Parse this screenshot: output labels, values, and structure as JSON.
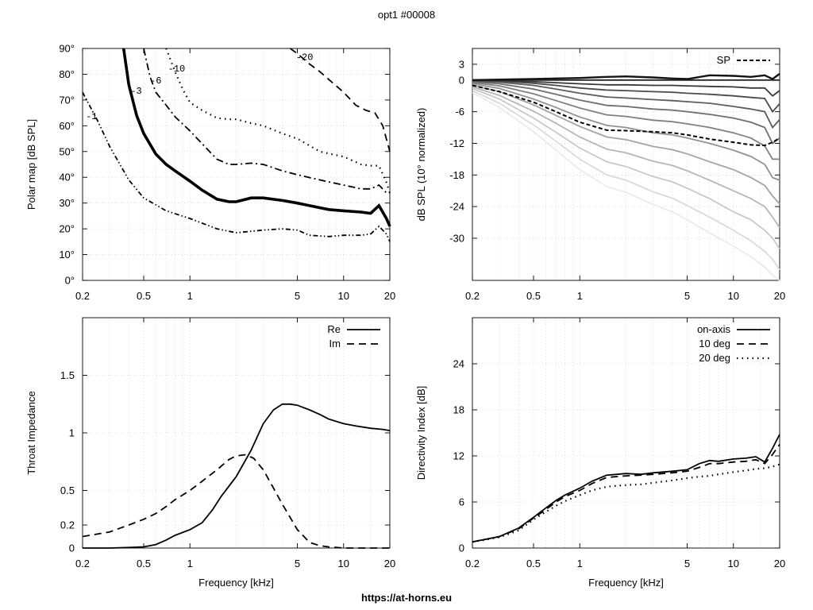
{
  "title": "opt1 #00008",
  "footer": "https://at-horns.eu",
  "chart_data": [
    {
      "id": "polar",
      "type": "line",
      "xscale": "log",
      "xlim": [
        0.2,
        20
      ],
      "ylim": [
        0,
        90
      ],
      "xticks": [
        0.2,
        0.5,
        1,
        5,
        10,
        20
      ],
      "xtick_labels": [
        "0.2",
        "0.5",
        "1",
        "5",
        "10",
        "20"
      ],
      "yticks": [
        0,
        10,
        20,
        30,
        40,
        50,
        60,
        70,
        80,
        90
      ],
      "ytick_labels": [
        "0°",
        "10°",
        "20°",
        "30°",
        "40°",
        "50°",
        "60°",
        "70°",
        "80°",
        "90°"
      ],
      "xlabel": "",
      "ylabel": "Polar map [dB SPL]",
      "grid": true,
      "series": [
        {
          "name": "-1",
          "style": "dashdotdot",
          "x": [
            0.2,
            0.25,
            0.3,
            0.4,
            0.5,
            0.7,
            1,
            1.5,
            2,
            3,
            4,
            5,
            6,
            8,
            10,
            13,
            15,
            17,
            19,
            20
          ],
          "y": [
            73,
            62,
            52,
            39,
            32,
            27,
            24,
            20,
            18.5,
            19.5,
            20,
            19.5,
            17.5,
            17,
            17.5,
            17.5,
            18,
            21,
            18,
            15
          ]
        },
        {
          "name": "-3",
          "style": "thick",
          "x": [
            0.37,
            0.4,
            0.45,
            0.5,
            0.6,
            0.7,
            0.8,
            1,
            1.2,
            1.5,
            1.8,
            2,
            2.5,
            3,
            4,
            5,
            6,
            8,
            10,
            13,
            15,
            17,
            19,
            20
          ],
          "y": [
            90,
            76,
            64,
            57,
            49,
            45,
            42.5,
            38.5,
            35,
            31.5,
            30.5,
            30.5,
            32,
            32,
            31,
            30,
            29,
            27.5,
            27,
            26.5,
            26,
            29,
            24,
            21
          ]
        },
        {
          "name": "-6",
          "style": "dashdot",
          "x": [
            0.5,
            0.55,
            0.6,
            0.7,
            0.8,
            1,
            1.2,
            1.5,
            1.8,
            2,
            2.5,
            3,
            4,
            5,
            7,
            10,
            13,
            15,
            17,
            19,
            20
          ],
          "y": [
            90,
            79,
            73,
            68,
            63.5,
            58,
            53,
            47,
            45,
            45,
            45.5,
            45,
            42.5,
            41,
            39,
            37,
            35.5,
            35.5,
            37,
            34,
            34
          ]
        },
        {
          "name": "-10",
          "style": "dotted",
          "x": [
            0.7,
            0.8,
            0.9,
            1,
            1.2,
            1.5,
            1.8,
            2,
            2.5,
            3,
            4,
            5,
            7,
            10,
            13,
            15,
            17,
            19,
            20
          ],
          "y": [
            90,
            81,
            74,
            69,
            66,
            63,
            62.5,
            62.5,
            61,
            60,
            57,
            55,
            50,
            48,
            45,
            44.5,
            44.5,
            38,
            34
          ]
        },
        {
          "name": "-20",
          "style": "dashed",
          "x": [
            4.5,
            5,
            6,
            7,
            8,
            10,
            12,
            14,
            16,
            18,
            20
          ],
          "y": [
            90,
            88,
            84,
            81,
            78,
            73,
            68,
            66,
            65,
            60,
            50
          ]
        }
      ],
      "contour_labels": [
        "-1",
        "-3",
        "-6",
        "-10",
        "-20"
      ]
    },
    {
      "id": "spl",
      "type": "line",
      "xscale": "log",
      "xlim": [
        0.2,
        20
      ],
      "ylim": [
        -38,
        6
      ],
      "xticks": [
        0.2,
        0.5,
        1,
        5,
        10,
        20
      ],
      "xtick_labels": [
        "0.2",
        "0.5",
        "1",
        "5",
        "10",
        "20"
      ],
      "yticks": [
        3,
        0,
        -6,
        -12,
        -18,
        -24,
        -30
      ],
      "ytick_labels": [
        "3",
        "0",
        "-6",
        "-12",
        "-18",
        "-24",
        "-30"
      ],
      "xlabel": "",
      "ylabel": "dB SPL (10° normalized)",
      "grid": true,
      "legend": {
        "position": "top-right",
        "entries": [
          "SP"
        ]
      },
      "x": [
        0.2,
        0.3,
        0.5,
        0.7,
        1,
        1.5,
        2,
        3,
        4,
        5,
        7,
        10,
        13,
        16,
        18,
        20
      ],
      "series": [
        {
          "name": "",
          "angle": 0,
          "y": [
            0,
            0.1,
            0.2,
            0.3,
            0.4,
            0.6,
            0.7,
            0.5,
            0.3,
            0.2,
            0.9,
            0.8,
            0.6,
            0.9,
            0.2,
            1.2
          ]
        },
        {
          "name": "",
          "angle": 10,
          "y": [
            0,
            0,
            0,
            0,
            0,
            0,
            0,
            0,
            0,
            0,
            0,
            0,
            0,
            0,
            0,
            0
          ]
        },
        {
          "name": "",
          "angle": 20,
          "y": [
            0,
            -0.1,
            -0.3,
            -0.5,
            -0.7,
            -0.9,
            -0.9,
            -1,
            -1,
            -1.1,
            -1.2,
            -1.3,
            -1.5,
            -1.5,
            -3,
            -2
          ]
        },
        {
          "name": "",
          "angle": 30,
          "y": [
            -0.1,
            -0.2,
            -0.6,
            -1,
            -1.5,
            -1.9,
            -2,
            -2.2,
            -2.3,
            -2.5,
            -2.7,
            -3,
            -3.3,
            -3.5,
            -6,
            -4.5
          ]
        },
        {
          "name": "",
          "angle": 40,
          "y": [
            -0.2,
            -0.4,
            -1,
            -1.7,
            -2.5,
            -3.2,
            -3.4,
            -3.7,
            -3.9,
            -4.1,
            -4.4,
            -5,
            -5.5,
            -6,
            -9,
            -7.5
          ]
        },
        {
          "name": "",
          "angle": 50,
          "y": [
            -0.3,
            -0.7,
            -1.7,
            -2.7,
            -3.8,
            -4.8,
            -5,
            -5.5,
            -5.7,
            -6,
            -6.5,
            -7.2,
            -8,
            -9,
            -12,
            -11
          ]
        },
        {
          "name": "",
          "angle": 60,
          "y": [
            -0.5,
            -1.1,
            -2.6,
            -3.9,
            -5.3,
            -6.6,
            -6.9,
            -7.6,
            -7.9,
            -8.3,
            -9,
            -10,
            -11,
            -12.5,
            -15,
            -15
          ]
        },
        {
          "name": "",
          "angle": 70,
          "y": [
            -0.7,
            -1.6,
            -3.6,
            -5.2,
            -7,
            -8.6,
            -9,
            -10,
            -10.4,
            -11,
            -12,
            -13.3,
            -14.5,
            -16,
            -18.5,
            -19
          ]
        },
        {
          "name": "",
          "angle": 80,
          "y": [
            -1,
            -2.2,
            -4.7,
            -6.7,
            -8.8,
            -10.8,
            -11.3,
            -12.6,
            -13.2,
            -14,
            -15.5,
            -17,
            -18.5,
            -20,
            -22,
            -23.5
          ]
        },
        {
          "name": "",
          "angle": 90,
          "y": [
            -1.3,
            -2.9,
            -5.9,
            -8.2,
            -10.8,
            -13.1,
            -13.8,
            -15.4,
            -16.2,
            -17.2,
            -19,
            -21,
            -22.5,
            -24,
            -26,
            -28
          ]
        },
        {
          "name": "",
          "angle": 100,
          "y": [
            -1.6,
            -3.6,
            -7.2,
            -9.9,
            -12.9,
            -15.5,
            -16.4,
            -18.3,
            -19.3,
            -20.5,
            -22.5,
            -25,
            -26.5,
            -28.5,
            -30,
            -32
          ]
        },
        {
          "name": "",
          "angle": 110,
          "y": [
            -2,
            -4.4,
            -8.5,
            -11.6,
            -15,
            -18,
            -19,
            -21.2,
            -22.4,
            -23.8,
            -26,
            -28.5,
            -30.5,
            -32.5,
            -34,
            -36
          ]
        },
        {
          "name": "",
          "angle": 120,
          "y": [
            -2.4,
            -5.2,
            -9.8,
            -13.3,
            -17,
            -20.2,
            -21.3,
            -23.6,
            -25,
            -26.5,
            -29,
            -31.5,
            -33.5,
            -35.5,
            -37,
            -38
          ]
        }
      ],
      "sp": {
        "name": "SP",
        "y": [
          -1,
          -2.2,
          -4.2,
          -6,
          -8,
          -9.5,
          -9.6,
          -9.8,
          -10,
          -10.4,
          -11.2,
          -11.8,
          -12.3,
          -12.4,
          -11.8,
          -11
        ]
      }
    },
    {
      "id": "impedance",
      "type": "line",
      "xscale": "log",
      "xlim": [
        0.2,
        20
      ],
      "ylim": [
        0,
        2
      ],
      "xticks": [
        0.2,
        0.5,
        1,
        5,
        10,
        20
      ],
      "xtick_labels": [
        "0.2",
        "0.5",
        "1",
        "5",
        "10",
        "20"
      ],
      "yticks": [
        0,
        0.2,
        0.5,
        1,
        1.5
      ],
      "ytick_labels": [
        "0",
        "0.2",
        "0.5",
        "1",
        "1.5"
      ],
      "xlabel": "Frequency [kHz]",
      "ylabel": "Throat Impedance",
      "grid": true,
      "legend": {
        "position": "top-right",
        "entries": [
          "Re",
          "Im"
        ]
      },
      "series": [
        {
          "name": "Re",
          "style": "solid",
          "x": [
            0.2,
            0.3,
            0.4,
            0.5,
            0.6,
            0.7,
            0.8,
            1,
            1.2,
            1.4,
            1.6,
            2,
            2.5,
            3,
            3.5,
            4,
            4.5,
            5,
            6,
            7,
            8,
            10,
            12,
            15,
            18,
            20
          ],
          "y": [
            0,
            0,
            0.005,
            0.01,
            0.03,
            0.07,
            0.11,
            0.16,
            0.22,
            0.33,
            0.45,
            0.62,
            0.85,
            1.08,
            1.2,
            1.25,
            1.25,
            1.24,
            1.2,
            1.16,
            1.12,
            1.08,
            1.06,
            1.04,
            1.03,
            1.02
          ]
        },
        {
          "name": "Im",
          "style": "dashed",
          "x": [
            0.2,
            0.3,
            0.4,
            0.5,
            0.6,
            0.7,
            0.8,
            1,
            1.2,
            1.5,
            1.8,
            2,
            2.3,
            2.6,
            3,
            3.5,
            4,
            5,
            6,
            7,
            8,
            10,
            15,
            20
          ],
          "y": [
            0.1,
            0.14,
            0.2,
            0.25,
            0.3,
            0.36,
            0.42,
            0.5,
            0.58,
            0.68,
            0.77,
            0.8,
            0.81,
            0.78,
            0.68,
            0.52,
            0.38,
            0.16,
            0.05,
            0.02,
            0.01,
            0,
            0,
            0
          ]
        }
      ]
    },
    {
      "id": "directivity",
      "type": "line",
      "xscale": "log",
      "xlim": [
        0.2,
        20
      ],
      "ylim": [
        0,
        30
      ],
      "xticks": [
        0.2,
        0.5,
        1,
        5,
        10,
        20
      ],
      "xtick_labels": [
        "0.2",
        "0.5",
        "1",
        "5",
        "10",
        "20"
      ],
      "yticks": [
        0,
        6,
        12,
        18,
        24
      ],
      "ytick_labels": [
        "0",
        "6",
        "12",
        "18",
        "24"
      ],
      "xlabel": "Frequency [kHz]",
      "ylabel": "Directivity Index [dB]",
      "grid": true,
      "legend": {
        "position": "top-right",
        "entries": [
          "on-axis",
          "10 deg",
          "20 deg"
        ]
      },
      "series": [
        {
          "name": "on-axis",
          "style": "solid",
          "x": [
            0.2,
            0.3,
            0.4,
            0.5,
            0.6,
            0.7,
            0.8,
            1,
            1.2,
            1.5,
            2,
            2.5,
            3,
            4,
            5,
            6,
            7,
            8,
            10,
            12,
            14,
            16,
            18,
            20
          ],
          "y": [
            0.8,
            1.5,
            2.6,
            4,
            5.2,
            6.2,
            6.9,
            7.8,
            8.7,
            9.5,
            9.7,
            9.6,
            9.8,
            10,
            10.2,
            11,
            11.4,
            11.3,
            11.6,
            11.7,
            11.9,
            11.2,
            13,
            14.8
          ]
        },
        {
          "name": "10 deg",
          "style": "dashed",
          "x": [
            0.2,
            0.3,
            0.4,
            0.5,
            0.6,
            0.7,
            0.8,
            1,
            1.2,
            1.5,
            2,
            2.5,
            3,
            4,
            5,
            6,
            7,
            8,
            10,
            12,
            14,
            16,
            18,
            20
          ],
          "y": [
            0.8,
            1.5,
            2.5,
            3.9,
            5,
            6,
            6.7,
            7.5,
            8.4,
            9.2,
            9.4,
            9.5,
            9.6,
            9.8,
            10,
            10.5,
            11,
            11,
            11.2,
            11.3,
            11.5,
            11,
            12.2,
            13.5
          ]
        },
        {
          "name": "20 deg",
          "style": "dotted",
          "x": [
            0.2,
            0.3,
            0.4,
            0.5,
            0.6,
            0.7,
            0.8,
            1,
            1.2,
            1.5,
            2,
            2.5,
            3,
            4,
            5,
            6,
            7,
            8,
            10,
            12,
            14,
            16,
            18,
            20
          ],
          "y": [
            0.8,
            1.4,
            2.3,
            3.7,
            4.7,
            5.5,
            6.1,
            6.9,
            7.5,
            8,
            8.2,
            8.3,
            8.5,
            8.8,
            9.1,
            9.3,
            9.4,
            9.6,
            9.9,
            10.1,
            10.3,
            10.4,
            10.6,
            10.9
          ]
        }
      ]
    }
  ]
}
